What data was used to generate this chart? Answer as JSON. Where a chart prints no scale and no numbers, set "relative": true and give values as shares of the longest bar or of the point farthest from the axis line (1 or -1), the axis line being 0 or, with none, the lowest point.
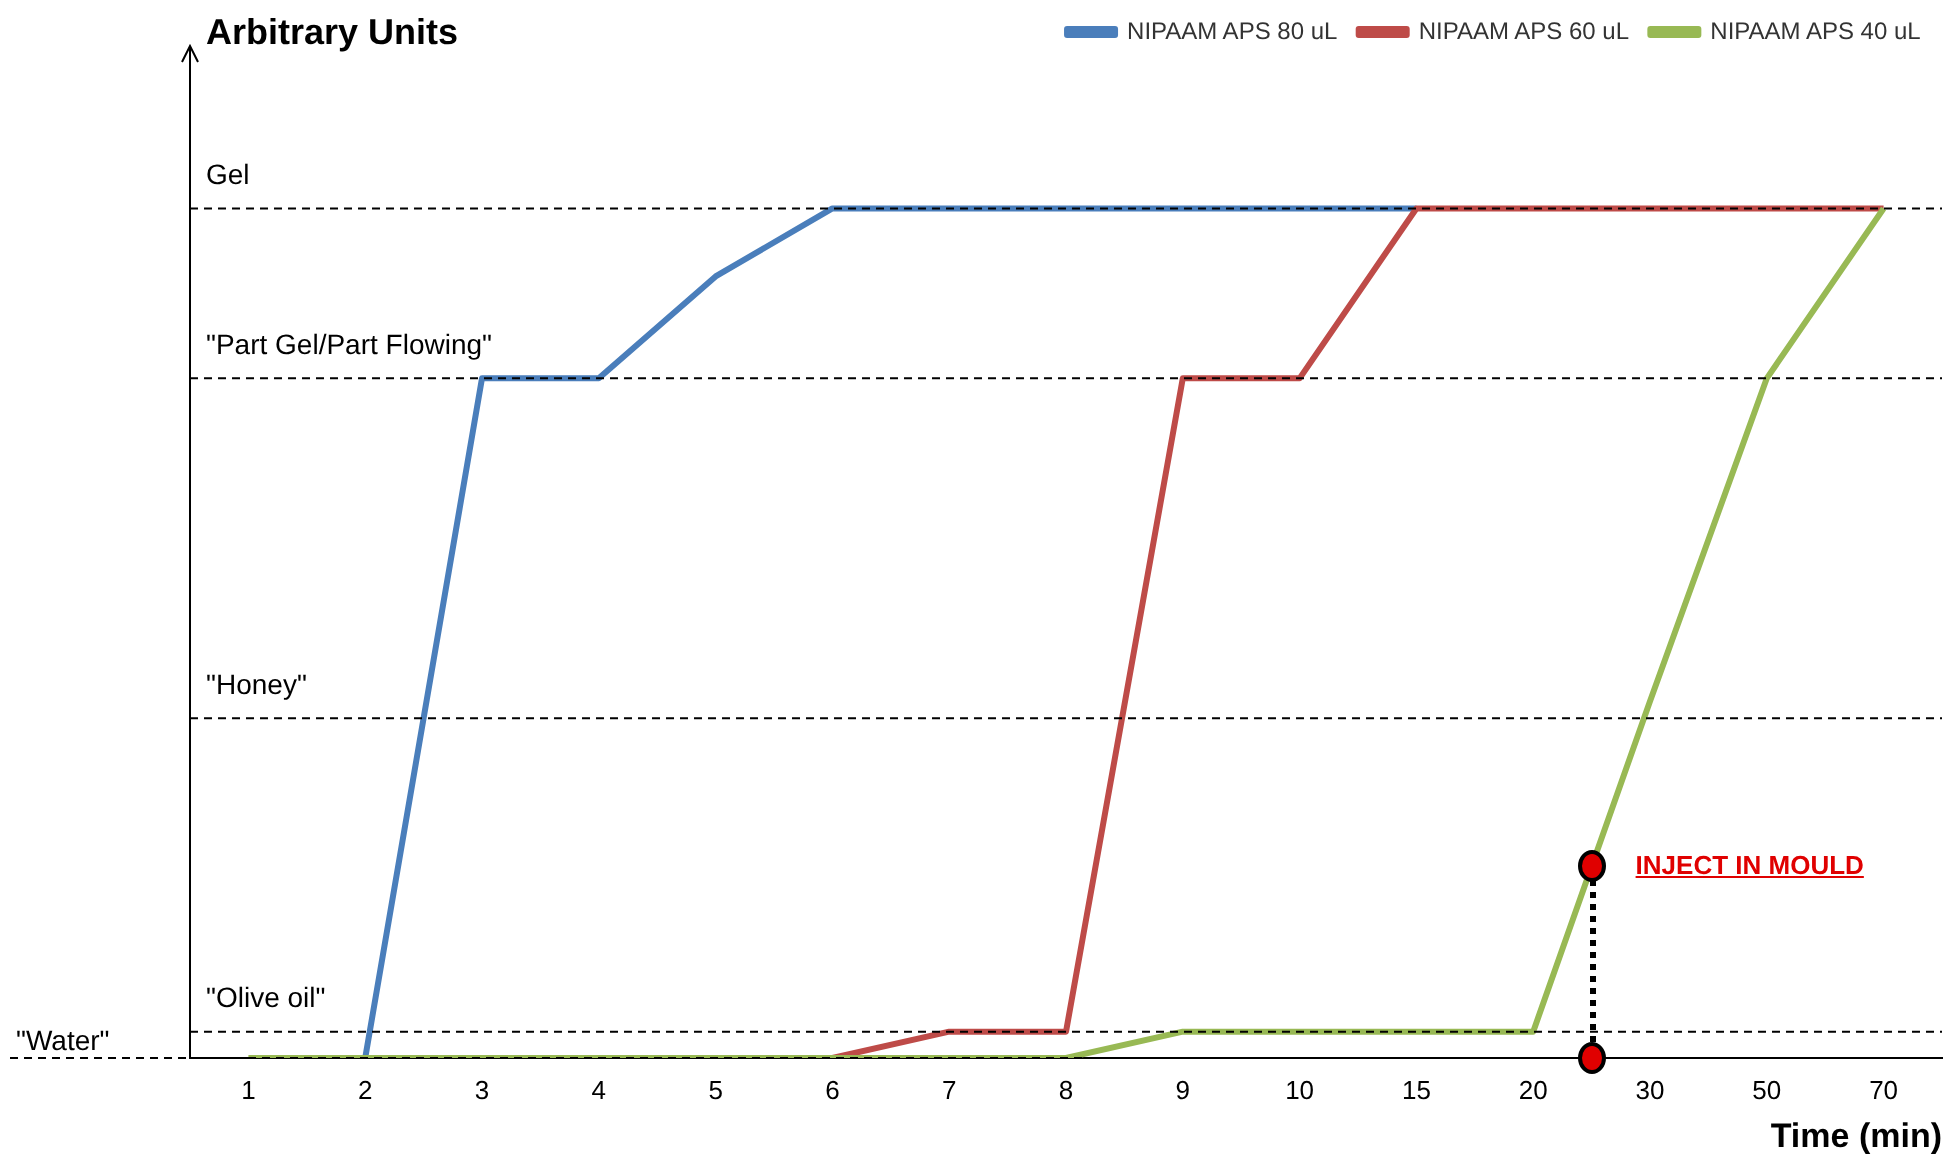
{
  "chart_data": {
    "type": "line",
    "relative": true,
    "ylabel": "Arbitrary Units",
    "xlabel": "Time (min)",
    "categories": [
      "1",
      "2",
      "3",
      "4",
      "5",
      "6",
      "7",
      "8",
      "9",
      "10",
      "15",
      "20",
      "30",
      "50",
      "70"
    ],
    "series": [
      {
        "name": "NIPAAM APS 80 uL",
        "color": "#4a7ebb",
        "values": [
          null,
          0,
          0.8,
          0.8,
          0.92,
          1,
          1,
          1,
          1,
          1,
          1,
          null,
          null,
          null,
          null
        ]
      },
      {
        "name": "NIPAAM APS 60 uL",
        "color": "#be4b48",
        "values": [
          null,
          null,
          null,
          null,
          null,
          0,
          0.031,
          0.031,
          0.8,
          0.8,
          1,
          1,
          1,
          1,
          1
        ]
      },
      {
        "name": "NIPAAM APS 40 uL",
        "color": "#98b954",
        "values": [
          0,
          0,
          0,
          0,
          0,
          0,
          0,
          0,
          0.031,
          0.031,
          0.031,
          0.031,
          0.42,
          0.8,
          1
        ]
      }
    ],
    "ref_lines": [
      {
        "axis": "y",
        "value": 1,
        "label": "Gel",
        "line_style": "dashed",
        "color": "#000000"
      },
      {
        "axis": "y",
        "value": 0.8,
        "label": "\"Part Gel/Part Flowing\"",
        "line_style": "dashed",
        "color": "#000000"
      },
      {
        "axis": "y",
        "value": 0.4,
        "label": "\"Honey\"",
        "line_style": "dashed",
        "color": "#000000"
      },
      {
        "axis": "y",
        "value": 0.031,
        "label": "\"Olive oil\"",
        "line_style": "dashed",
        "color": "#000000"
      },
      {
        "axis": "y",
        "value": 0,
        "label": "\"Water\"",
        "line_style": "dashed",
        "color": "#000000"
      }
    ],
    "annotations": [
      "INJECT IN MOULD"
    ],
    "grid": false,
    "legend": "top right",
    "marker": "none",
    "line_style": "solid"
  }
}
